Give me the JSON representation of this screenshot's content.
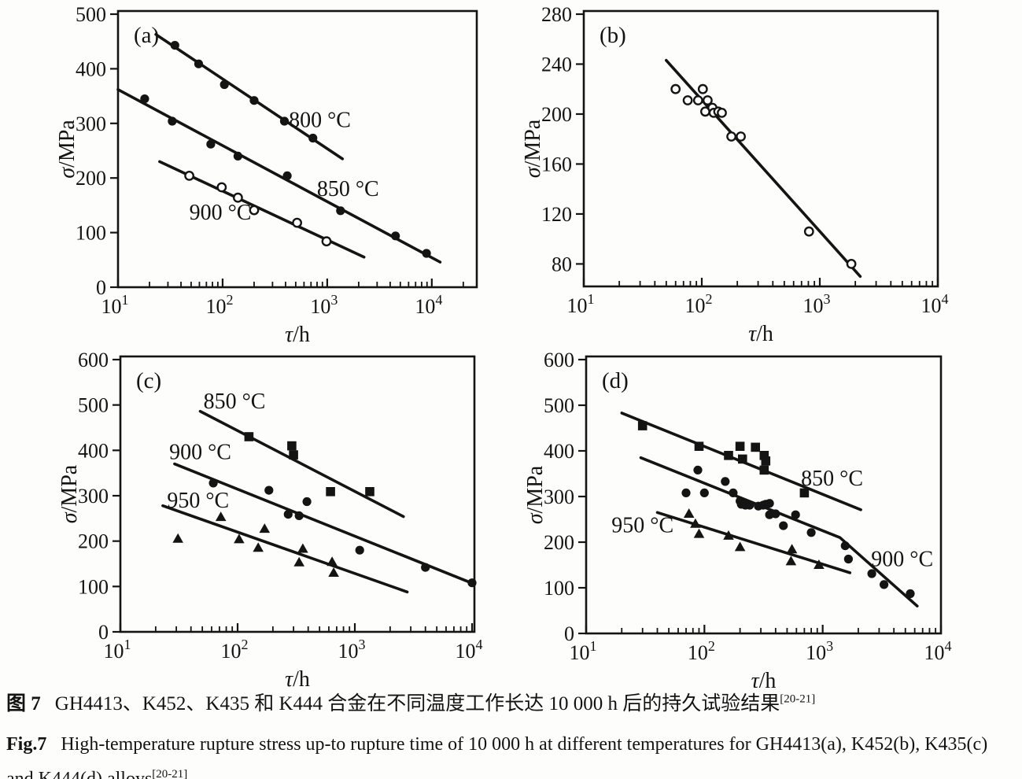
{
  "page": {
    "background": "#fdfdfb"
  },
  "caption": {
    "zh": {
      "prefix": "图 7",
      "text": "GH4413、K452、K435 和 K444 合金在不同温度工作长达 10 000 h 后的持久试验结果",
      "sup": "[20-21]"
    },
    "en": {
      "prefix": "Fig.7",
      "line1": "High-temperature rupture stress up-to rupture time of 10 000 h at different temperatures for GH4413(a), K452(b), K435(c)",
      "line2": "and K444(d) alloys",
      "sup": "[20-21]"
    }
  },
  "chart_data": [
    {
      "id": "a",
      "panel": "(a)",
      "alloy": "GH4413",
      "type": "scatter",
      "x_scale": "log",
      "xlabel": "τ/h",
      "ylabel": "σ/MPa",
      "xlim_log10": [
        1,
        4.43
      ],
      "xtick_exponents": [
        1,
        2,
        3,
        4
      ],
      "ylim": [
        0,
        500
      ],
      "yticks": [
        0,
        100,
        200,
        300,
        400,
        500
      ],
      "grid": false,
      "series": [
        {
          "name": "800 °C",
          "marker": "filled-circle",
          "points": [
            [
              35,
              443
            ],
            [
              59,
              409
            ],
            [
              104,
              371
            ],
            [
              200,
              342
            ],
            [
              390,
              304
            ],
            [
              730,
              273
            ]
          ],
          "fit_line": [
            [
              23,
              463
            ],
            [
              1400,
              235
            ]
          ],
          "label": {
            "text": "800 °C",
            "x": 850,
            "y": 306
          }
        },
        {
          "name": "850 °C",
          "marker": "filled-circle",
          "points": [
            [
              18,
              345
            ],
            [
              33,
              304
            ],
            [
              77,
              262
            ],
            [
              140,
              240
            ],
            [
              415,
              204
            ],
            [
              1340,
              140
            ],
            [
              4500,
              94
            ],
            [
              8900,
              62
            ]
          ],
          "fit_line": [
            [
              10,
              362
            ],
            [
              12000,
              46
            ]
          ],
          "label": {
            "text": "850 °C",
            "x": 1580,
            "y": 180
          }
        },
        {
          "name": "900 °C",
          "marker": "open-circle",
          "points": [
            [
              48,
              204
            ],
            [
              98,
              183
            ],
            [
              140,
              164
            ],
            [
              200,
              141
            ],
            [
              515,
              118
            ],
            [
              985,
              84
            ]
          ],
          "fit_line": [
            [
              25,
              230
            ],
            [
              2250,
              55
            ]
          ],
          "label": {
            "text": "900 °C",
            "x": 95,
            "y": 137
          }
        }
      ]
    },
    {
      "id": "b",
      "panel": "(b)",
      "alloy": "K452",
      "type": "scatter",
      "x_scale": "log",
      "xlabel": "τ/h",
      "ylabel": "σ/MPa",
      "xlim_log10": [
        1,
        4.0
      ],
      "xtick_exponents": [
        1,
        2,
        3,
        4
      ],
      "ylim": [
        62,
        280
      ],
      "yticks": [
        80,
        120,
        160,
        200,
        240,
        280
      ],
      "grid": false,
      "series": [
        {
          "marker": "open-circle",
          "points": [
            [
              60,
              220
            ],
            [
              76,
              211
            ],
            [
              93,
              211
            ],
            [
              102,
              220
            ],
            [
              107,
              202
            ],
            [
              112,
              211
            ],
            [
              123,
              205
            ],
            [
              126,
              201
            ],
            [
              138,
              202
            ],
            [
              148,
              201
            ],
            [
              178,
              182
            ],
            [
              214,
              182
            ],
            [
              810,
              106
            ],
            [
              1850,
              80
            ]
          ],
          "fit_line": [
            [
              50,
              243
            ],
            [
              2200,
              70
            ]
          ],
          "label": null
        }
      ]
    },
    {
      "id": "c",
      "panel": "(c)",
      "alloy": "K435",
      "type": "scatter",
      "x_scale": "log",
      "xlabel": "τ/h",
      "ylabel": "σ/MPa",
      "xlim_log10": [
        1,
        4.02
      ],
      "xtick_exponents": [
        1,
        2,
        3,
        4
      ],
      "ylim": [
        0,
        600
      ],
      "yticks": [
        0,
        100,
        200,
        300,
        400,
        500,
        600
      ],
      "grid": false,
      "series": [
        {
          "name": "850 °C",
          "marker": "filled-square",
          "points": [
            [
              125,
              430
            ],
            [
              290,
              410
            ],
            [
              300,
              390
            ],
            [
              620,
              309
            ],
            [
              1340,
              309
            ]
          ],
          "fit_line": [
            [
              48,
              486
            ],
            [
              2600,
              254
            ]
          ],
          "label": {
            "text": "850 °C",
            "x": 94,
            "y": 508
          }
        },
        {
          "name": "900 °C",
          "marker": "filled-circle",
          "points": [
            [
              62,
              328
            ],
            [
              185,
              312
            ],
            [
              270,
              259
            ],
            [
              335,
              256
            ],
            [
              390,
              287
            ],
            [
              1100,
              180
            ],
            [
              4000,
              142
            ],
            [
              10000,
              108
            ]
          ],
          "fit_line": [
            [
              29,
              370
            ],
            [
              10500,
              105
            ]
          ],
          "label": {
            "text": "900 °C",
            "x": 48,
            "y": 396
          }
        },
        {
          "name": "950 °C",
          "marker": "filled-triangle",
          "points": [
            [
              31,
              205
            ],
            [
              72,
              253
            ],
            [
              103,
              204
            ],
            [
              150,
              185
            ],
            [
              170,
              227
            ],
            [
              335,
              153
            ],
            [
              360,
              183
            ],
            [
              640,
              154
            ],
            [
              660,
              130
            ]
          ],
          "fit_line": [
            [
              23,
              278
            ],
            [
              2800,
              88
            ]
          ],
          "label": {
            "text": "950 °C",
            "x": 46,
            "y": 290
          }
        }
      ]
    },
    {
      "id": "d",
      "panel": "(d)",
      "alloy": "K444",
      "type": "scatter",
      "x_scale": "log",
      "xlabel": "τ/h",
      "ylabel": "σ/MPa",
      "xlim_log10": [
        1,
        4.0
      ],
      "xtick_exponents": [
        1,
        2,
        3,
        4
      ],
      "ylim": [
        0,
        600
      ],
      "yticks": [
        0,
        100,
        200,
        300,
        400,
        500,
        600
      ],
      "grid": false,
      "series": [
        {
          "name": "850 °C",
          "marker": "filled-square",
          "points": [
            [
              30,
              455
            ],
            [
              90,
              410
            ],
            [
              160,
              390
            ],
            [
              200,
              410
            ],
            [
              210,
              382
            ],
            [
              270,
              408
            ],
            [
              320,
              390
            ],
            [
              330,
              378
            ],
            [
              320,
              358
            ],
            [
              700,
              308
            ]
          ],
          "fit_line": [
            [
              20,
              483
            ],
            [
              2100,
              271
            ]
          ],
          "label": {
            "text": "850 °C",
            "x": 1200,
            "y": 340
          }
        },
        {
          "name": "900 °C",
          "marker": "filled-circle",
          "points": [
            [
              70,
              308
            ],
            [
              88,
              358
            ],
            [
              100,
              308
            ],
            [
              150,
              333
            ],
            [
              175,
              308
            ],
            [
              200,
              290
            ],
            [
              205,
              283
            ],
            [
              222,
              281
            ],
            [
              241,
              281
            ],
            [
              286,
              279
            ],
            [
              314,
              281
            ],
            [
              330,
              283
            ],
            [
              355,
              285
            ],
            [
              355,
              260
            ],
            [
              400,
              262
            ],
            [
              465,
              236
            ],
            [
              590,
              260
            ],
            [
              800,
              221
            ],
            [
              1550,
              192
            ],
            [
              1650,
              163
            ],
            [
              2600,
              131
            ],
            [
              3300,
              107
            ],
            [
              5500,
              87
            ]
          ],
          "fit_line": [
            [
              29,
              385
            ],
            [
              1400,
              210
            ],
            [
              6300,
              60
            ]
          ],
          "label": {
            "text": "900 °C",
            "x": 4700,
            "y": 163
          }
        },
        {
          "name": "950 °C",
          "marker": "filled-triangle",
          "points": [
            [
              74,
              262
            ],
            [
              84,
              240
            ],
            [
              90,
              218
            ],
            [
              160,
              214
            ],
            [
              200,
              189
            ],
            [
              550,
              184
            ],
            [
              540,
              158
            ],
            [
              930,
              150
            ]
          ],
          "fit_line": [
            [
              40,
              265
            ],
            [
              1700,
              133
            ]
          ],
          "label": {
            "text": "950 °C",
            "x": 30,
            "y": 237
          }
        }
      ]
    }
  ]
}
